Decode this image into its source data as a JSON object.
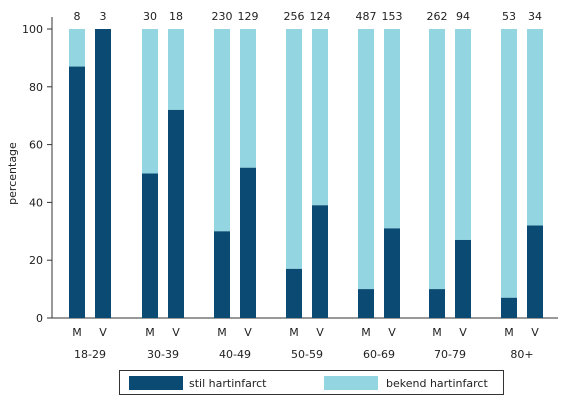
{
  "chart_data": {
    "type": "bar",
    "stacked": true,
    "ylabel": "percentage",
    "ylim": [
      0,
      100
    ],
    "yticks": [
      0,
      20,
      40,
      60,
      80,
      100
    ],
    "grid": false,
    "legend_position": "bottom",
    "groups": [
      "18-29",
      "30-39",
      "40-49",
      "50-59",
      "60-69",
      "70-79",
      "80+"
    ],
    "sexes": [
      "M",
      "V"
    ],
    "series": [
      {
        "name": "stil hartinfarct",
        "color": "#0b4a73",
        "values": [
          87,
          100,
          50,
          72,
          30,
          52,
          17,
          39,
          10,
          31,
          10,
          27,
          7,
          32
        ]
      },
      {
        "name": "bekend hartinfarct",
        "color": "#93d5e0",
        "values": [
          13,
          0,
          50,
          28,
          70,
          48,
          83,
          61,
          90,
          69,
          90,
          73,
          93,
          68
        ]
      }
    ],
    "bar_counts": [
      "8",
      "3",
      "30",
      "18",
      "230",
      "129",
      "256",
      "124",
      "487",
      "153",
      "262",
      "94",
      "53",
      "34"
    ]
  }
}
